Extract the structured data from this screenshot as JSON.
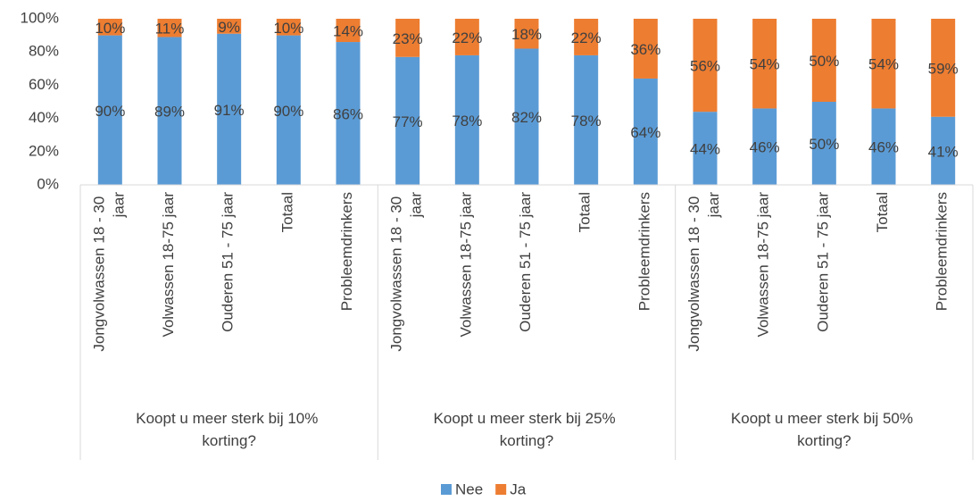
{
  "chart_data": {
    "type": "stacked_bar",
    "categories": [
      "Jongvolwassen 18 - 30 jaar",
      "Volwassen 18-75 jaar",
      "Ouderen 51 - 75 jaar",
      "Totaal",
      "Probleemdrinkers",
      "Jongvolwassen 18 - 30 jaar",
      "Volwassen 18-75 jaar",
      "Ouderen 51 - 75 jaar",
      "Totaal",
      "Probleemdrinkers",
      "Jongvolwassen 18 - 30 jaar",
      "Volwassen 18-75 jaar",
      "Ouderen 51 - 75 jaar",
      "Totaal",
      "Probleemdrinkers"
    ],
    "group_labels": [
      "Koopt u meer sterk bij 10% korting?",
      "Koopt u meer sterk bij 25% korting?",
      "Koopt u meer sterk bij 50% korting?"
    ],
    "series": [
      {
        "name": "Nee",
        "color": "#5b9bd5",
        "values": [
          90,
          89,
          91,
          90,
          86,
          77,
          78,
          82,
          78,
          64,
          44,
          46,
          50,
          46,
          41
        ],
        "value_labels": [
          "90%",
          "89%",
          "91%",
          "90%",
          "86%",
          "77%",
          "78%",
          "82%",
          "78%",
          "64%",
          "44%",
          "46%",
          "50%",
          "46%",
          "41%"
        ]
      },
      {
        "name": "Ja",
        "color": "#ed7d31",
        "values": [
          10,
          11,
          9,
          10,
          14,
          23,
          22,
          18,
          22,
          36,
          56,
          54,
          50,
          54,
          59
        ],
        "value_labels": [
          "10%",
          "11%",
          "9%",
          "10%",
          "14%",
          "23%",
          "22%",
          "18%",
          "22%",
          "36%",
          "56%",
          "54%",
          "50%",
          "54%",
          "59%"
        ]
      }
    ],
    "ylim": [
      0,
      100
    ],
    "yticks": [
      {
        "value": 0,
        "label": "0%"
      },
      {
        "value": 20,
        "label": "20%"
      },
      {
        "value": 40,
        "label": "40%"
      },
      {
        "value": 60,
        "label": "60%"
      },
      {
        "value": 80,
        "label": "80%"
      },
      {
        "value": 100,
        "label": "100%"
      }
    ],
    "grid": false,
    "legend": "bottom"
  }
}
